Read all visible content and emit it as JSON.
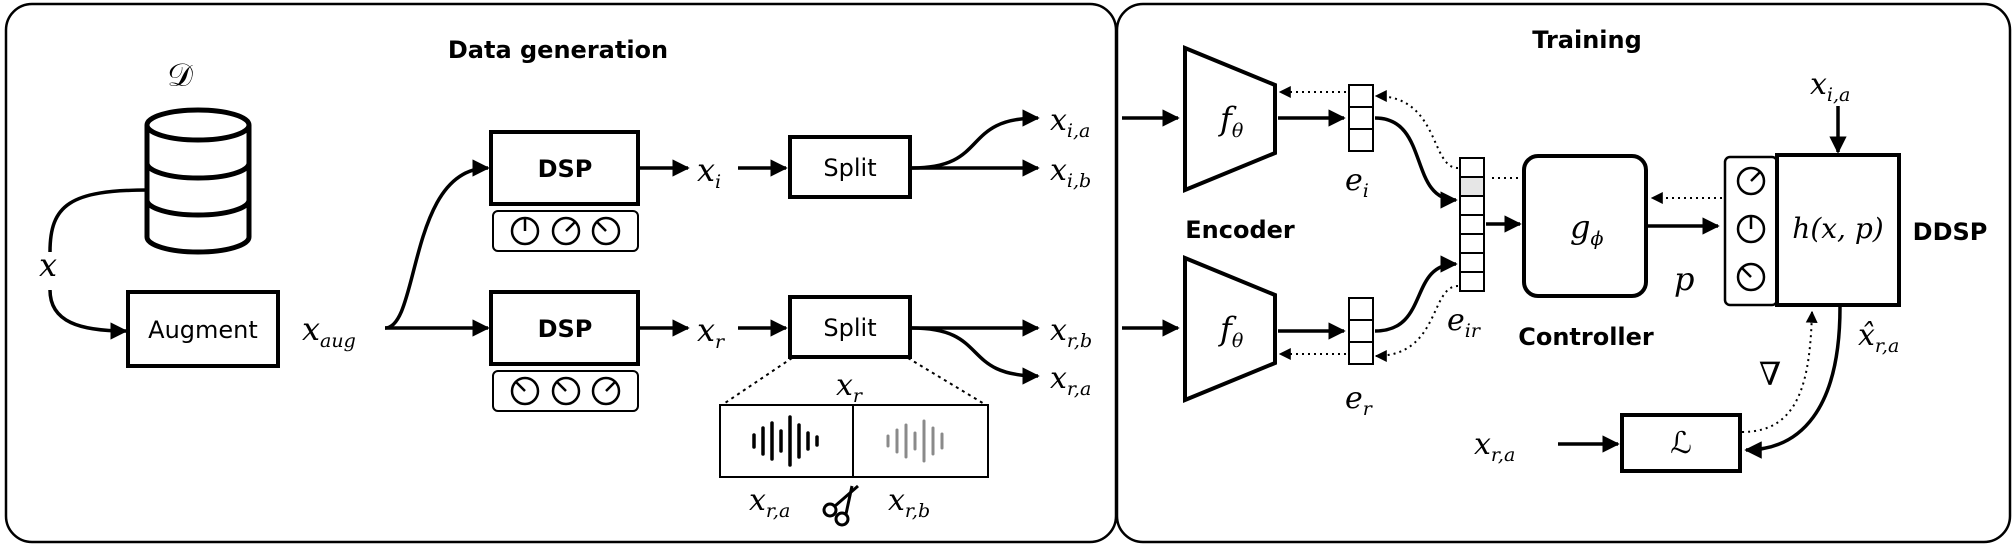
{
  "panels": {
    "data_generation": "Data generation",
    "training": "Training"
  },
  "dataset_symbol": "𝒟",
  "blocks": {
    "augment": "Augment",
    "dsp_top": "DSP",
    "dsp_bottom": "DSP",
    "split_top": "Split",
    "split_bottom": "Split"
  },
  "labels": {
    "encoder": "Encoder",
    "controller": "Controller",
    "ddsp": "DDSP"
  },
  "math": {
    "x": {
      "base": "x",
      "sub": ""
    },
    "x_aug": {
      "base": "x",
      "sub": "aug"
    },
    "x_i": {
      "base": "x",
      "sub": "i"
    },
    "x_r": {
      "base": "x",
      "sub": "r"
    },
    "x_ia": {
      "base": "x",
      "sub": "i,a"
    },
    "x_ib": {
      "base": "x",
      "sub": "i,b"
    },
    "x_rb": {
      "base": "x",
      "sub": "r,b"
    },
    "x_ra": {
      "base": "x",
      "sub": "r,a"
    },
    "x_r_split": {
      "base": "x",
      "sub": "r"
    },
    "x_ra_cut": {
      "base": "x",
      "sub": "r,a"
    },
    "x_rb_cut": {
      "base": "x",
      "sub": "r,b"
    },
    "f_top": {
      "base": "f",
      "sub": "θ"
    },
    "f_bottom": {
      "base": "f",
      "sub": "θ"
    },
    "e_i": {
      "base": "e",
      "sub": "i"
    },
    "e_r": {
      "base": "e",
      "sub": "r"
    },
    "e_ir": {
      "base": "e",
      "sub": "ir"
    },
    "g_phi": {
      "base": "g",
      "sub": "ϕ"
    },
    "p": {
      "base": "p",
      "sub": ""
    },
    "h_label": "h(x, p)",
    "x_ia_in": {
      "base": "x",
      "sub": "i,a"
    },
    "xhat_ra": {
      "base": "x̂",
      "sub": "r,a"
    },
    "x_ra_loss": {
      "base": "x",
      "sub": "r,a"
    },
    "loss": "ℒ",
    "nabla": "∇"
  },
  "icons": [
    "dataset-cylinder-icon",
    "knob-icon",
    "waveform-icon",
    "scissors-icon"
  ]
}
